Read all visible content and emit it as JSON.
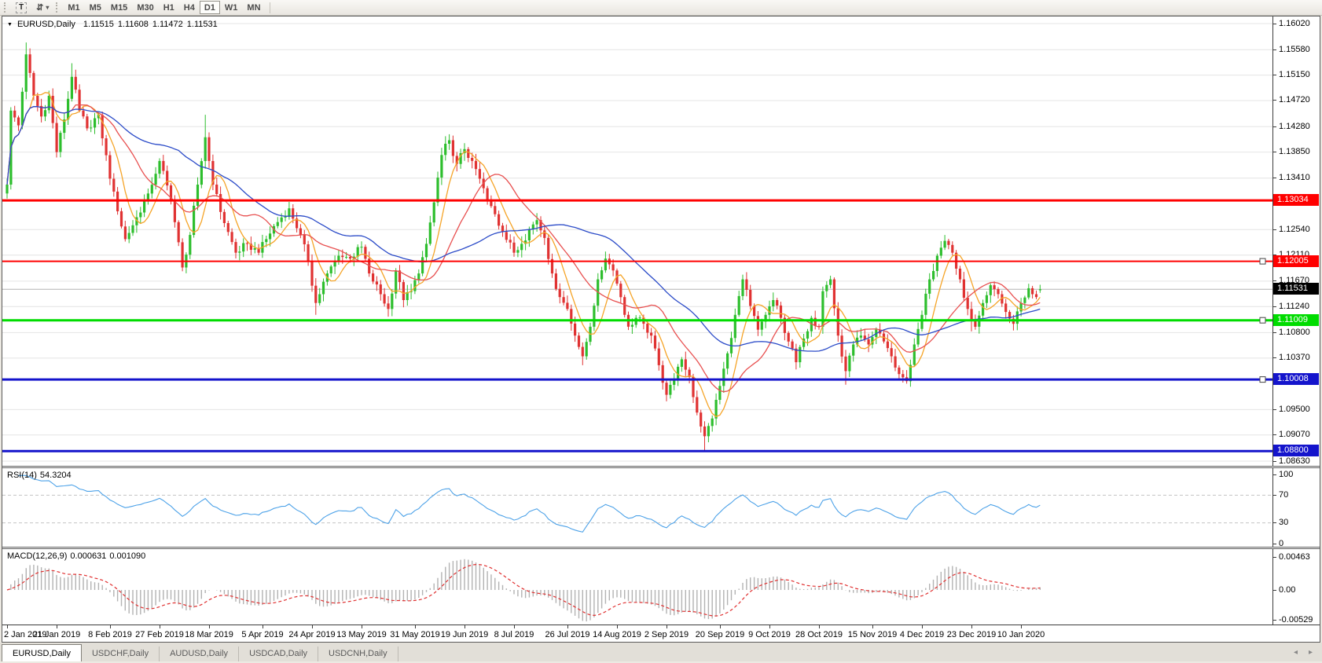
{
  "icons": {
    "cursor_tool": "⇵",
    "dropdown": "▾",
    "chart_menu": "▼",
    "tabs_left": "◂",
    "tabs_right": "▸"
  },
  "toolbar": {
    "text_tool_label": "T",
    "timeframes": [
      {
        "label": "M1",
        "active": false
      },
      {
        "label": "M5",
        "active": false
      },
      {
        "label": "M15",
        "active": false
      },
      {
        "label": "M30",
        "active": false
      },
      {
        "label": "H1",
        "active": false
      },
      {
        "label": "H4",
        "active": false
      },
      {
        "label": "D1",
        "active": true
      },
      {
        "label": "W1",
        "active": false
      },
      {
        "label": "MN",
        "active": false
      }
    ]
  },
  "chart": {
    "symbol": "EURUSD,Daily",
    "open": "1.11515",
    "high": "1.11608",
    "low": "1.11472",
    "close": "1.11531"
  },
  "indicators": {
    "rsi": {
      "name": "RSI(14)",
      "value": "54.3204"
    },
    "macd": {
      "name": "MACD(12,26,9)",
      "value_main": "0.000631",
      "value_signal": "0.001090"
    }
  },
  "tabs": {
    "items": [
      {
        "label": "EURUSD,Daily",
        "active": true
      },
      {
        "label": "USDCHF,Daily",
        "active": false
      },
      {
        "label": "AUDUSD,Daily",
        "active": false
      },
      {
        "label": "USDCAD,Daily",
        "active": false
      },
      {
        "label": "USDCNH,Daily",
        "active": false
      }
    ]
  },
  "chart_data": {
    "type": "candlestick",
    "symbol": "EURUSD",
    "period": "Daily",
    "bars_total": 272,
    "price_max": 1.1602,
    "price_min": 1.0863,
    "y_ticks": [
      "1.16020",
      "1.15580",
      "1.15150",
      "1.14720",
      "1.14280",
      "1.13850",
      "1.13410",
      "1.12540",
      "1.12110",
      "1.11670",
      "1.11240",
      "1.10800",
      "1.10370",
      "1.09500",
      "1.09070",
      "1.08630"
    ],
    "x_labels": [
      "2 Jan 2019",
      "21 Jan 2019",
      "8 Feb 2019",
      "27 Feb 2019",
      "18 Mar 2019",
      "5 Apr 2019",
      "24 Apr 2019",
      "13 May 2019",
      "31 May 2019",
      "19 Jun 2019",
      "8 Jul 2019",
      "26 Jul 2019",
      "14 Aug 2019",
      "2 Sep 2019",
      "20 Sep 2019",
      "9 Oct 2019",
      "28 Oct 2019",
      "15 Nov 2019",
      "4 Dec 2019",
      "23 Dec 2019",
      "10 Jan 2020"
    ],
    "x_label_bars": [
      0,
      13,
      27,
      40,
      53,
      67,
      80,
      93,
      107,
      120,
      133,
      147,
      160,
      173,
      187,
      200,
      213,
      227,
      240,
      253,
      266
    ],
    "hlines": [
      {
        "price": 1.13034,
        "label": "1.13034",
        "color": "#FF0000",
        "width": 3,
        "handle": false
      },
      {
        "price": 1.12005,
        "label": "1.12005",
        "color": "#FF0000",
        "width": 2,
        "handle": true
      },
      {
        "price": 1.11009,
        "label": "1.11009",
        "color": "#00DC00",
        "width": 3,
        "handle": true
      },
      {
        "price": 1.10008,
        "label": "1.10008",
        "color": "#1414CC",
        "width": 3,
        "handle": true
      },
      {
        "price": 1.088,
        "label": "1.08800",
        "color": "#1414CC",
        "width": 3,
        "handle": false
      }
    ],
    "current_price": {
      "value": 1.11531,
      "label": "1.11531"
    },
    "last_bar": {
      "o": 1.11515,
      "h": 1.11608,
      "l": 1.11472,
      "c": 1.11531
    },
    "price_anchors": [
      [
        0,
        1.133
      ],
      [
        1,
        1.1455
      ],
      [
        3,
        1.143
      ],
      [
        5,
        1.155
      ],
      [
        7,
        1.148
      ],
      [
        9,
        1.1445
      ],
      [
        11,
        1.148
      ],
      [
        13,
        1.1385
      ],
      [
        15,
        1.144
      ],
      [
        17,
        1.1512
      ],
      [
        19,
        1.1455
      ],
      [
        21,
        1.1425
      ],
      [
        24,
        1.1448
      ],
      [
        27,
        1.134
      ],
      [
        29,
        1.1285
      ],
      [
        31,
        1.1238
      ],
      [
        34,
        1.1275
      ],
      [
        37,
        1.1315
      ],
      [
        40,
        1.137
      ],
      [
        43,
        1.1305
      ],
      [
        46,
        1.119
      ],
      [
        48,
        1.1245
      ],
      [
        50,
        1.133
      ],
      [
        52,
        1.141
      ],
      [
        54,
        1.133
      ],
      [
        57,
        1.1265
      ],
      [
        60,
        1.1215
      ],
      [
        63,
        1.123
      ],
      [
        66,
        1.1215
      ],
      [
        70,
        1.126
      ],
      [
        74,
        1.129
      ],
      [
        77,
        1.1245
      ],
      [
        79,
        1.12
      ],
      [
        81,
        1.113
      ],
      [
        84,
        1.118
      ],
      [
        87,
        1.121
      ],
      [
        90,
        1.1205
      ],
      [
        93,
        1.1225
      ],
      [
        95,
        1.118
      ],
      [
        98,
        1.1145
      ],
      [
        100,
        1.112
      ],
      [
        102,
        1.1185
      ],
      [
        104,
        1.1135
      ],
      [
        106,
        1.115
      ],
      [
        108,
        1.118
      ],
      [
        110,
        1.123
      ],
      [
        112,
        1.13
      ],
      [
        114,
        1.138
      ],
      [
        116,
        1.1405
      ],
      [
        118,
        1.1365
      ],
      [
        120,
        1.139
      ],
      [
        122,
        1.137
      ],
      [
        124,
        1.134
      ],
      [
        126,
        1.1305
      ],
      [
        128,
        1.128
      ],
      [
        130,
        1.125
      ],
      [
        133,
        1.1215
      ],
      [
        135,
        1.123
      ],
      [
        137,
        1.1255
      ],
      [
        139,
        1.127
      ],
      [
        141,
        1.124
      ],
      [
        143,
        1.118
      ],
      [
        145,
        1.114
      ],
      [
        147,
        1.112
      ],
      [
        149,
        1.1075
      ],
      [
        151,
        1.104
      ],
      [
        153,
        1.109
      ],
      [
        155,
        1.117
      ],
      [
        157,
        1.1205
      ],
      [
        159,
        1.1185
      ],
      [
        161,
        1.114
      ],
      [
        163,
        1.109
      ],
      [
        165,
        1.1105
      ],
      [
        167,
        1.1095
      ],
      [
        169,
        1.1075
      ],
      [
        171,
        1.1025
      ],
      [
        173,
        1.0975
      ],
      [
        175,
        1.1
      ],
      [
        177,
        1.1035
      ],
      [
        179,
        1.1005
      ],
      [
        181,
        1.0945
      ],
      [
        183,
        1.0905
      ],
      [
        185,
        1.0935
      ],
      [
        187,
        1.099
      ],
      [
        189,
        1.1045
      ],
      [
        191,
        1.111
      ],
      [
        193,
        1.117
      ],
      [
        195,
        1.1125
      ],
      [
        197,
        1.1085
      ],
      [
        199,
        1.111
      ],
      [
        201,
        1.1135
      ],
      [
        203,
        1.1105
      ],
      [
        205,
        1.1065
      ],
      [
        207,
        1.103
      ],
      [
        209,
        1.107
      ],
      [
        211,
        1.1105
      ],
      [
        213,
        1.109
      ],
      [
        214,
        1.115
      ],
      [
        216,
        1.117
      ],
      [
        218,
        1.1075
      ],
      [
        220,
        1.1015
      ],
      [
        222,
        1.106
      ],
      [
        224,
        1.1075
      ],
      [
        226,
        1.106
      ],
      [
        228,
        1.1085
      ],
      [
        230,
        1.1065
      ],
      [
        232,
        1.104
      ],
      [
        234,
        1.101
      ],
      [
        236,
        1.0998
      ],
      [
        238,
        1.106
      ],
      [
        240,
        1.111
      ],
      [
        242,
        1.117
      ],
      [
        244,
        1.121
      ],
      [
        246,
        1.1235
      ],
      [
        248,
        1.1215
      ],
      [
        250,
        1.117
      ],
      [
        252,
        1.112
      ],
      [
        254,
        1.109
      ],
      [
        256,
        1.113
      ],
      [
        258,
        1.116
      ],
      [
        260,
        1.1145
      ],
      [
        262,
        1.1115
      ],
      [
        264,
        1.1095
      ],
      [
        266,
        1.113
      ],
      [
        268,
        1.1155
      ],
      [
        270,
        1.114
      ],
      [
        271,
        1.11531
      ]
    ],
    "wick_events": [
      [
        5,
        "h",
        1.157
      ],
      [
        17,
        "h",
        1.1535
      ],
      [
        52,
        "h",
        1.1448
      ],
      [
        81,
        "l",
        1.111
      ],
      [
        100,
        "l",
        1.1107
      ],
      [
        151,
        "l",
        1.1025
      ],
      [
        183,
        "l",
        1.088
      ],
      [
        220,
        "l",
        1.0992
      ],
      [
        246,
        "h",
        1.1245
      ],
      [
        253,
        "l",
        1.1082
      ]
    ],
    "moving_averages": [
      {
        "period": 7,
        "color": "#F5A428"
      },
      {
        "period": 18,
        "color": "#E85050"
      },
      {
        "period": 45,
        "color": "#2B4BC8"
      }
    ],
    "rsi_panel": {
      "levels": [
        {
          "v": 100,
          "label": "100",
          "dashed": false
        },
        {
          "v": 70,
          "label": "70",
          "dashed": true
        },
        {
          "v": 30,
          "label": "30",
          "dashed": true
        },
        {
          "v": 0,
          "label": "0",
          "dashed": false
        }
      ],
      "line_color": "#4DA2E8"
    },
    "macd_panel": {
      "ticks": [
        {
          "label": "0.00463",
          "pos": "top"
        },
        {
          "label": "0.00",
          "pos": "zero"
        },
        {
          "label": "-0.00529",
          "pos": "bottom"
        }
      ],
      "hist_color": "#B2B2B2",
      "signal_color": "#E03030"
    },
    "colors": {
      "bull": "#2DBE2D",
      "bear": "#E03232",
      "grid": "#E4E4E4",
      "price_line": "#B4B4B4"
    }
  }
}
